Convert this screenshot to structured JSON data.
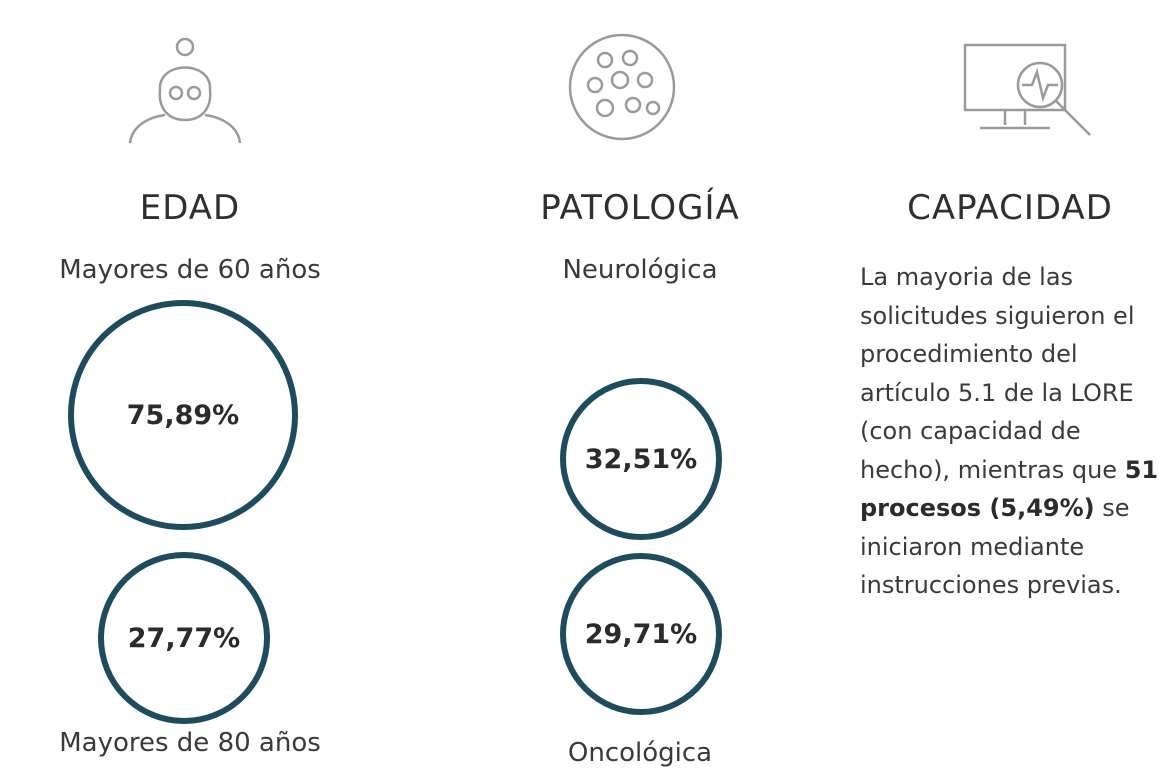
{
  "columns": [
    {
      "title": "EDAD",
      "items": [
        {
          "label": "Mayores de 60 años",
          "value": "75,89%"
        },
        {
          "label": "Mayores de 80 años",
          "value": "27,77%"
        }
      ]
    },
    {
      "title": "PATOLOGÍA",
      "items": [
        {
          "label": "Neurológica",
          "value": "32,51%"
        },
        {
          "label": "Oncológica",
          "value": "29,71%"
        }
      ]
    }
  ],
  "capacidad": {
    "title": "CAPACIDAD",
    "text_before": "La mayoria de las solicitudes siguieron el procedimiento del artículo 5.1 de la LORE (con capacidad de hecho), mientras que",
    "text_bold": "51 procesos (5,49%)",
    "text_after": "se iniciaron mediante instrucciones previas."
  }
}
